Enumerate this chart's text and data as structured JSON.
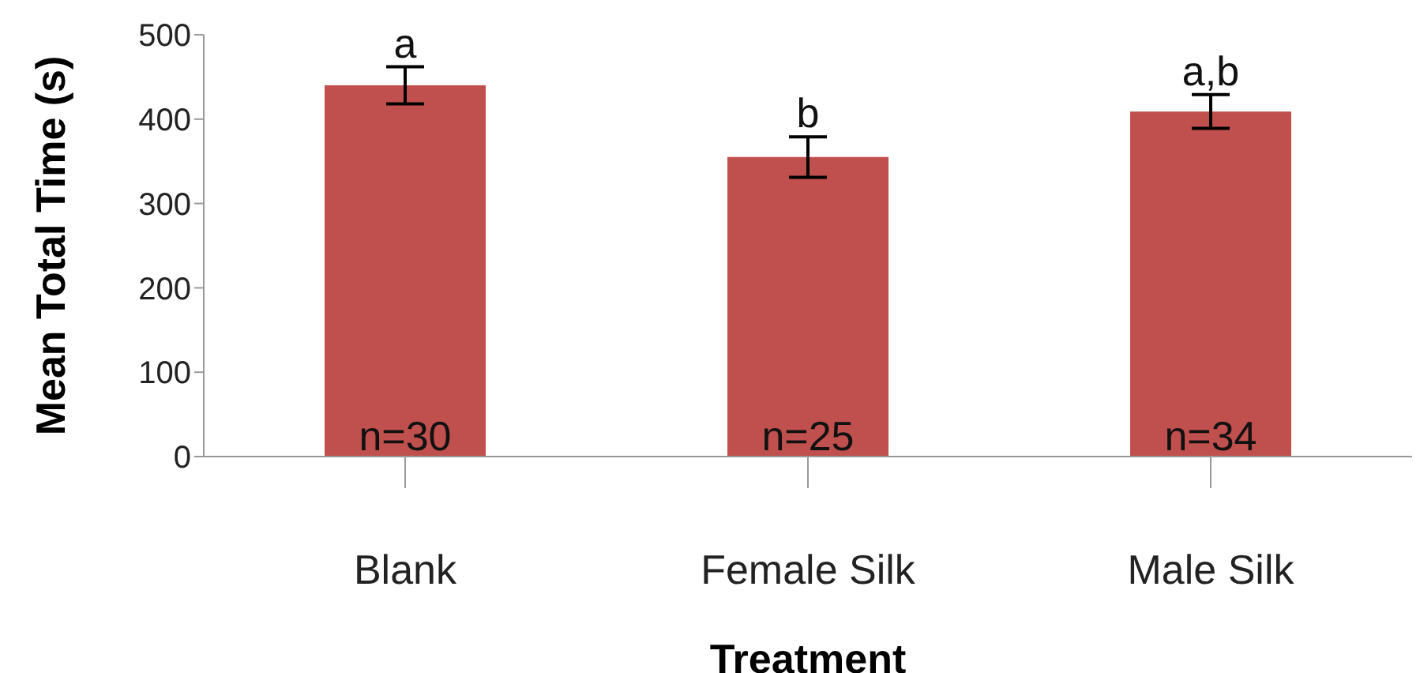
{
  "chart_data": {
    "type": "bar",
    "xlabel": "Treatment",
    "ylabel": "Mean Total Time (s)",
    "categories": [
      "Blank",
      "Female Silk",
      "Male Silk"
    ],
    "values": [
      440,
      355,
      409
    ],
    "errors": [
      22,
      24,
      20
    ],
    "color": "#c0504d",
    "ylim": [
      0,
      500
    ],
    "yticks": [
      0,
      100,
      200,
      300,
      400,
      500
    ],
    "grid": false,
    "legend": false,
    "annotations": [
      "a",
      "b",
      "a,b",
      "n=30",
      "n=25",
      "n=34"
    ]
  }
}
